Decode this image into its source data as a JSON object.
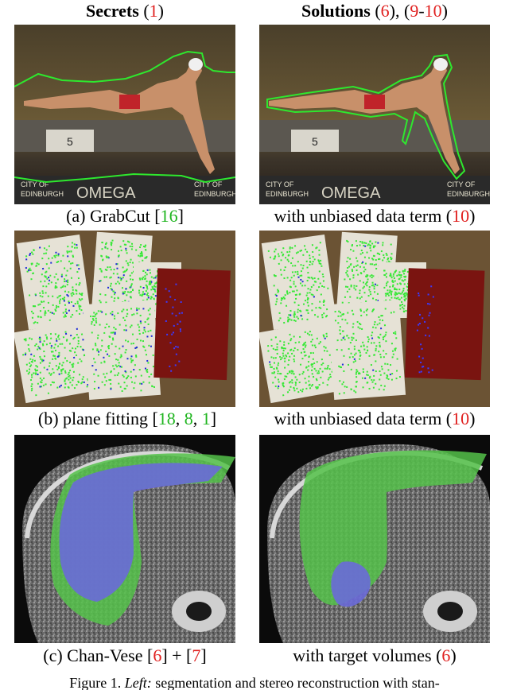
{
  "headers": {
    "left": {
      "bold": "Secrets",
      "open": " (",
      "ref1": "1",
      "close": ")"
    },
    "right": {
      "bold": "Solutions",
      "p1": " (",
      "ref6": "6",
      "mid": "), (",
      "ref9": "9",
      "dash": "-",
      "ref10": "10",
      "close": ")"
    }
  },
  "rows": [
    {
      "left_caption": {
        "prefix": "(a) GrabCut [",
        "ref": "16",
        "suffix": "]"
      },
      "right_caption": {
        "prefix": "with unbiased data term (",
        "ref": "10",
        "suffix": ")"
      }
    },
    {
      "left_caption": {
        "prefix": "(b) plane fitting [",
        "ref1": "18",
        "sep1": ", ",
        "ref2": "8",
        "sep2": ", ",
        "ref3": "1",
        "suffix": "]"
      },
      "right_caption": {
        "prefix": "with unbiased data term (",
        "ref": "10",
        "suffix": ")"
      }
    },
    {
      "left_caption": {
        "prefix": "(c) Chan-Vese [",
        "ref1": "6",
        "mid": "] + [",
        "ref2": "7",
        "suffix": "]"
      },
      "right_caption": {
        "prefix": "with target volumes (",
        "ref": "6",
        "suffix": ")"
      }
    }
  ],
  "pool_signs": {
    "lane": "5",
    "city": "CITY OF",
    "edinburgh": "EDINBURGH",
    "omega": "OMEGA"
  },
  "figure_caption": {
    "label": "Figure 1.",
    "italic": "Left:",
    "text": " segmentation and stereo reconstruction with stan-"
  },
  "colors": {
    "contour": "#2ee82e",
    "ref_red": "#e0201f",
    "ref_green": "#1fb51f",
    "overlay_green": "#55c24a",
    "overlay_blue": "#6a6ad8"
  }
}
